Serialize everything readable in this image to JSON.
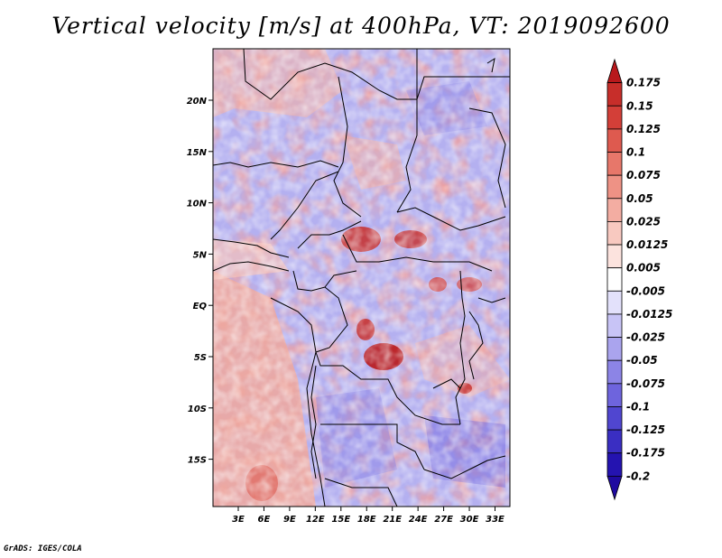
{
  "title": "Vertical velocity [m/s] at 400hPa, VT: 2019092600",
  "credit": "GrADS: IGES/COLA",
  "lat_labels": [
    "20N",
    "15N",
    "10N",
    "5N",
    "EQ",
    "5S",
    "10S",
    "15S"
  ],
  "lon_labels": [
    "3E",
    "6E",
    "9E",
    "12E",
    "15E",
    "18E",
    "21E",
    "24E",
    "27E",
    "30E",
    "33E"
  ],
  "colorbar": {
    "levels": [
      "0.175",
      "0.15",
      "0.125",
      "0.1",
      "0.075",
      "0.05",
      "0.025",
      "0.0125",
      "0.005",
      "-0.005",
      "-0.0125",
      "-0.025",
      "-0.05",
      "-0.075",
      "-0.1",
      "-0.125",
      "-0.175",
      "-0.2"
    ],
    "colors": [
      "#b8191c",
      "#c72e2a",
      "#d33f38",
      "#de5a4f",
      "#e7776a",
      "#ee9285",
      "#f3ada2",
      "#f8c9c0",
      "#fce3de",
      "#ffffff",
      "#e3e1fb",
      "#c8c4f6",
      "#aaa4ee",
      "#8c84e6",
      "#6e64dd",
      "#5046d0",
      "#3a2ec2",
      "#2413b0",
      "#1f0aa0"
    ]
  },
  "map": {
    "lon_range": [
      0,
      35
    ],
    "lat_range": [
      -20,
      24.5
    ],
    "field_description_colors": {
      "positive": "#e7776a",
      "negative": "#8c84e6",
      "strong_positive": "#b8191c"
    }
  }
}
